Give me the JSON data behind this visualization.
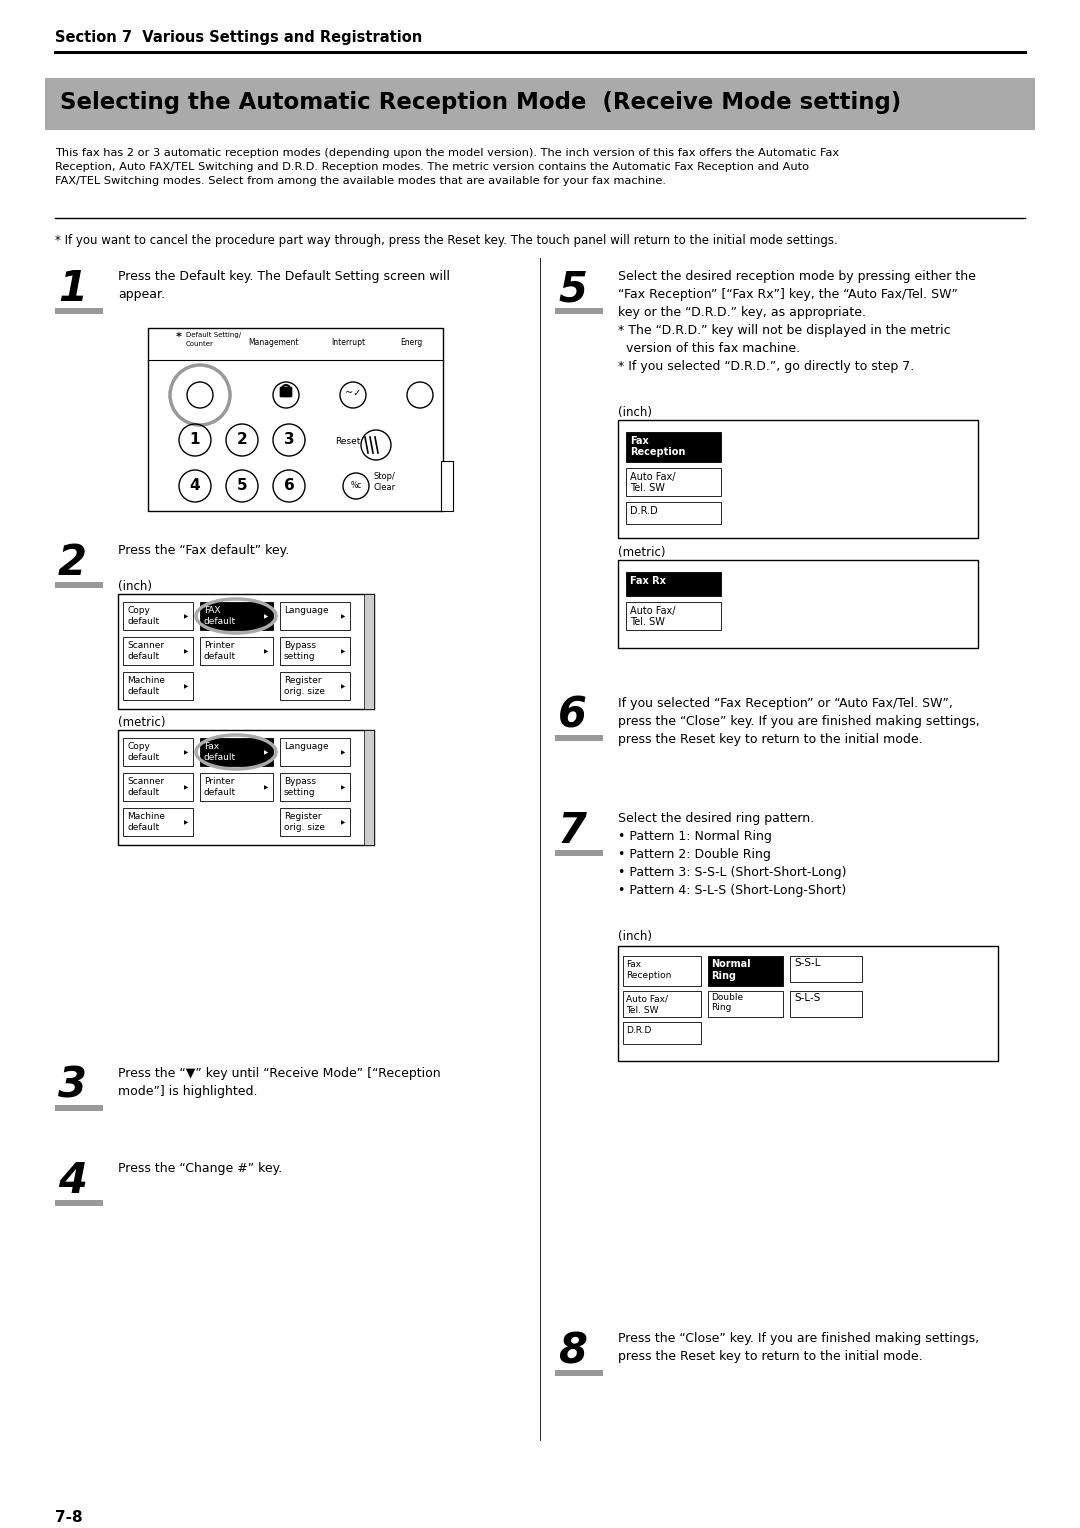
{
  "page_bg": "#ffffff",
  "section_label": "Section 7  Various Settings and Registration",
  "title": "Selecting the Automatic Reception Mode  (Receive Mode setting)",
  "title_bg": "#aaaaaa",
  "intro_text": "This fax has 2 or 3 automatic reception modes (depending upon the model version). The inch version of this fax offers the Automatic Fax\nReception, Auto FAX/TEL Switching and D.R.D. Reception modes. The metric version contains the Automatic Fax Reception and Auto\nFAX/TEL Switching modes. Select from among the available modes that are available for your fax machine.",
  "note_text": "* If you want to cancel the procedure part way through, press the Reset key. The touch panel will return to the initial mode settings.",
  "footer": "7-8",
  "step1_text": "Press the Default key. The Default Setting screen will\nappear.",
  "step2_text": "Press the “Fax default” key.",
  "step3_text": "Press the “▼” key until “Receive Mode” [“Reception\nmode”] is highlighted.",
  "step4_text": "Press the “Change #” key.",
  "step5_text": "Select the desired reception mode by pressing either the\n“Fax Reception” [“Fax Rx”] key, the “Auto Fax/Tel. SW”\nkey or the “D.R.D.” key, as appropriate.\n* The “D.R.D.” key will not be displayed in the metric\n  version of this fax machine.\n* If you selected “D.R.D.”, go directly to step 7.",
  "step6_text": "If you selected “Fax Reception” or “Auto Fax/Tel. SW”,\npress the “Close” key. If you are finished making settings,\npress the Reset key to return to the initial mode.",
  "step7_text": "Select the desired ring pattern.\n• Pattern 1: Normal Ring\n• Pattern 2: Double Ring\n• Pattern 3: S-S-L (Short-Short-Long)\n• Pattern 4: S-L-S (Short-Long-Short)",
  "step8_text": "Press the “Close” key. If you are finished making settings,\npress the Reset key to return to the initial mode."
}
